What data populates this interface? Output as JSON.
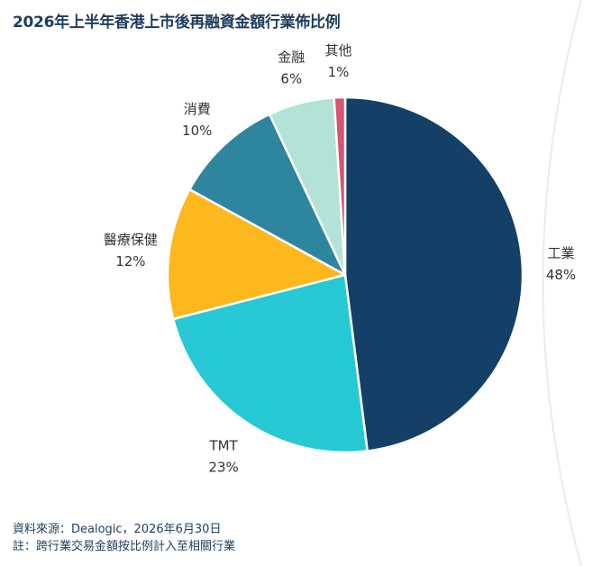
{
  "chart_data": {
    "type": "pie",
    "title": "2026年上半年香港上市後再融資金額行業佈比例",
    "start_angle_deg": 0,
    "direction": "clockwise",
    "slices": [
      {
        "label": "工業",
        "value": 48,
        "value_label": "48%",
        "color": "#143f66"
      },
      {
        "label": "TMT",
        "value": 23,
        "value_label": "23%",
        "color": "#27c9d4"
      },
      {
        "label": "醫療保健",
        "value": 12,
        "value_label": "12%",
        "color": "#fdb81e"
      },
      {
        "label": "消費",
        "value": 10,
        "value_label": "10%",
        "color": "#2e869e"
      },
      {
        "label": "金融",
        "value": 6,
        "value_label": "6%",
        "color": "#b3e3d7"
      },
      {
        "label": "其他",
        "value": 1,
        "value_label": "1%",
        "color": "#d9546e"
      }
    ]
  },
  "footer": {
    "source": "資料來源：Dealogic，2026年6月30日",
    "note": "註：跨行業交易金額按比例計入至相關行業"
  }
}
